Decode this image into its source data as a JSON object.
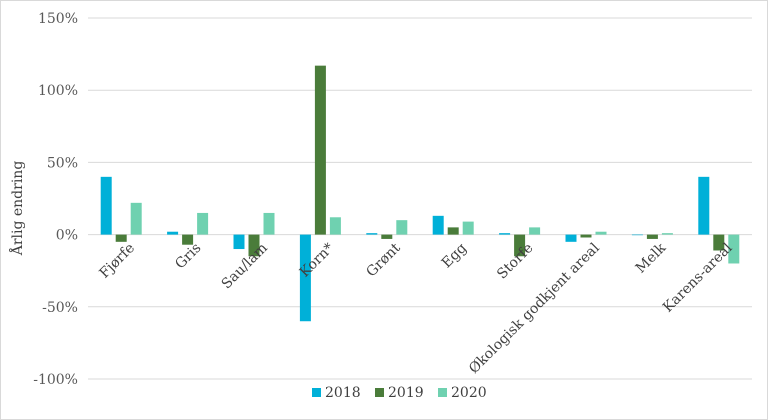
{
  "chart_data": {
    "type": "bar",
    "ylabel": "Årlig endring",
    "ylim": [
      -100,
      150
    ],
    "yticks": [
      150,
      100,
      50,
      0,
      -50,
      -100
    ],
    "ytick_labels": [
      "150%",
      "100%",
      "50%",
      "0%",
      "-50%",
      "-100%"
    ],
    "grid": "horizontal",
    "legend_position": "bottom",
    "categories": [
      "Fjørfe",
      "Gris",
      "Sau/lam",
      "Korn*",
      "Grønt",
      "Egg",
      "Storfe",
      "Økologisk godkjent areal",
      "Melk",
      "Karens-areal"
    ],
    "series": [
      {
        "name": "2018",
        "color": "#00b0d8",
        "values": [
          40,
          2,
          -10,
          -60,
          1,
          13,
          1,
          -5,
          0,
          40
        ]
      },
      {
        "name": "2019",
        "color": "#4a7c3a",
        "values": [
          -5,
          -7,
          -15,
          117,
          -3,
          5,
          -15,
          -2,
          -3,
          -11
        ]
      },
      {
        "name": "2020",
        "color": "#6fd1b0",
        "values": [
          22,
          15,
          15,
          12,
          10,
          9,
          5,
          2,
          1,
          -20
        ]
      }
    ]
  }
}
